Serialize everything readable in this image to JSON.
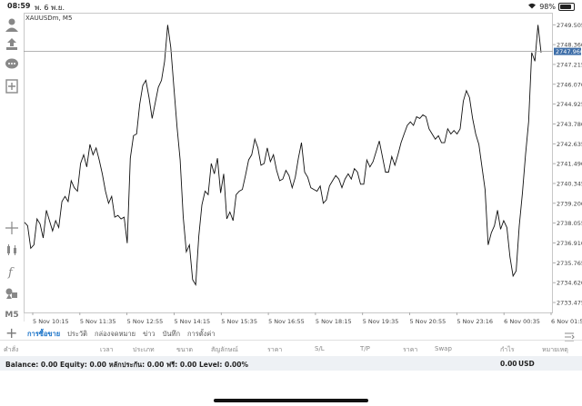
{
  "status": {
    "time": "08:59",
    "date": "พ. 6 พ.ย.",
    "battery": "98%"
  },
  "toolbar": {
    "timeframe": "M5"
  },
  "chart": {
    "symbol": "XAUUSDm, M5",
    "current_price": "2747.966"
  },
  "chart_data": {
    "type": "line",
    "symbol": "XAUUSDm, M5",
    "ylim": [
      2732.9,
      2750.2
    ],
    "price_ticks": [
      "2749.505",
      "2748.360",
      "2747.215",
      "2746.070",
      "2744.925",
      "2743.780",
      "2742.635",
      "2741.490",
      "2740.345",
      "2739.200",
      "2738.055",
      "2736.910",
      "2735.765",
      "2734.620",
      "2733.475"
    ],
    "time_ticks": [
      "5 Nov 10:15",
      "5 Nov 11:35",
      "5 Nov 12:55",
      "5 Nov 14:15",
      "5 Nov 15:35",
      "5 Nov 16:55",
      "5 Nov 18:15",
      "5 Nov 19:35",
      "5 Nov 20:55",
      "5 Nov 23:16",
      "6 Nov 00:35",
      "6 Nov 01:55"
    ],
    "current_price": 2747.966,
    "values": [
      2738.1,
      2737.9,
      2736.6,
      2736.8,
      2738.3,
      2738.0,
      2737.2,
      2738.8,
      2738.2,
      2737.6,
      2738.2,
      2737.8,
      2739.3,
      2739.6,
      2739.3,
      2740.5,
      2740.1,
      2739.9,
      2741.5,
      2742.0,
      2741.3,
      2742.6,
      2742.0,
      2742.4,
      2741.7,
      2740.9,
      2739.9,
      2739.2,
      2739.6,
      2738.4,
      2738.5,
      2738.3,
      2738.4,
      2736.9,
      2741.8,
      2743.1,
      2743.2,
      2744.9,
      2746.0,
      2746.3,
      2745.3,
      2744.1,
      2745.0,
      2745.9,
      2746.3,
      2747.4,
      2749.5,
      2748.2,
      2745.9,
      2743.6,
      2741.7,
      2738.4,
      2736.4,
      2736.8,
      2734.8,
      2734.5,
      2737.3,
      2739.1,
      2739.9,
      2739.7,
      2741.5,
      2740.9,
      2741.8,
      2739.8,
      2740.9,
      2738.3,
      2738.7,
      2738.2,
      2739.7,
      2739.9,
      2740.0,
      2740.8,
      2741.7,
      2742.0,
      2742.9,
      2742.4,
      2741.4,
      2741.5,
      2742.4,
      2741.6,
      2742.0,
      2741.1,
      2740.5,
      2740.6,
      2741.1,
      2740.8,
      2740.1,
      2740.7,
      2741.8,
      2742.7,
      2741.0,
      2740.7,
      2740.1,
      2740.0,
      2739.9,
      2740.2,
      2739.2,
      2739.4,
      2740.2,
      2740.5,
      2740.8,
      2740.6,
      2740.1,
      2740.6,
      2740.9,
      2740.6,
      2741.2,
      2741.0,
      2740.3,
      2740.3,
      2741.7,
      2741.3,
      2741.6,
      2742.2,
      2742.8,
      2741.9,
      2741.0,
      2741.0,
      2741.9,
      2741.4,
      2742.0,
      2742.7,
      2743.2,
      2743.7,
      2743.9,
      2743.7,
      2744.2,
      2744.1,
      2744.3,
      2744.2,
      2743.5,
      2743.2,
      2742.9,
      2743.1,
      2742.7,
      2742.7,
      2743.5,
      2743.2,
      2743.4,
      2743.2,
      2743.5,
      2745.1,
      2745.7,
      2745.3,
      2744.1,
      2743.2,
      2742.6,
      2741.3,
      2740.0,
      2736.8,
      2737.5,
      2737.9,
      2738.8,
      2737.7,
      2738.2,
      2737.8,
      2736.1,
      2735.0,
      2735.3,
      2737.9,
      2739.8,
      2742.0,
      2743.9,
      2747.9,
      2747.4,
      2749.5,
      2747.9
    ]
  },
  "tabs": [
    "การซื้อขาย",
    "ประวัติ",
    "กล่องจดหมาย",
    "ข่าว",
    "บันทึก",
    "การตั้งค่า"
  ],
  "table_headers": [
    "คำสั่ง",
    "เวลา",
    "ประเภท",
    "ขนาด",
    "สัญลักษณ์",
    "ราคา",
    "S/L",
    "T/P",
    "ราคา",
    "Swap",
    "กำไร",
    "หมายเหตุ"
  ],
  "balance": {
    "text": "Balance: 0.00 Equity: 0.00 หลักประกัน: 0.00 ฟรี: 0.00 Level: 0.00%",
    "amount": "0.00",
    "currency": "USD"
  }
}
